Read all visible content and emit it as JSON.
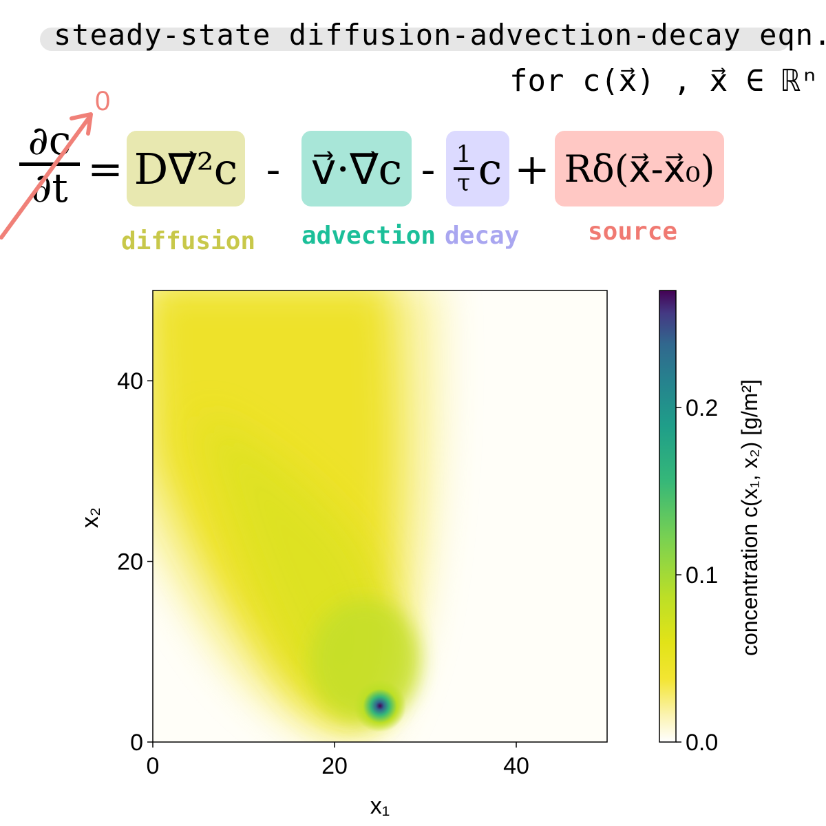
{
  "title": "steady-state diffusion-advection-decay eqn.",
  "subtitle": "for c(x⃗) , x⃗ ∈ ℝⁿ",
  "equation": {
    "lhs": "∂c/∂t",
    "lhs_num": "∂c",
    "lhs_den": "∂t",
    "lhs_zero": "0",
    "equals": "=",
    "diffusion_term": "D∇⃗²c",
    "minus1": "-",
    "advection_term": "v⃗·∇⃗c",
    "minus2": "-",
    "decay_num": "1",
    "decay_den": "τ",
    "decay_c": "c",
    "plus": "+",
    "source_term": "Rδ(x⃗-x⃗₀)"
  },
  "labels": {
    "diffusion": "diffusion",
    "advection": "advection",
    "decay": "decay",
    "source": "source"
  },
  "colors": {
    "diffusion": "#e8e8b0",
    "diffusion_text": "#c8c84a",
    "advection": "#a8e6d8",
    "advection_text": "#1bbf99",
    "decay": "#dcdaff",
    "decay_text": "#a9a6f0",
    "source": "#ffc8c4",
    "source_text": "#f07a72",
    "arrow": "#f08078"
  },
  "chart_data": {
    "type": "heatmap",
    "title": "",
    "xlabel": "x₁",
    "ylabel": "x₂",
    "xlim": [
      0,
      50
    ],
    "ylim": [
      0,
      50
    ],
    "xticks": [
      0,
      20,
      40
    ],
    "yticks": [
      0,
      20,
      40
    ],
    "source_location": [
      25,
      4
    ],
    "colorbar": {
      "label": "concentration c(x₁, x₂) [g/m²]",
      "range": [
        0.0,
        0.27
      ],
      "ticks": [
        0.0,
        0.1,
        0.2
      ],
      "tick_labels": [
        "0.0",
        "0.1",
        "0.2"
      ],
      "colormap": "viridis (reversed, white at zero)"
    }
  }
}
